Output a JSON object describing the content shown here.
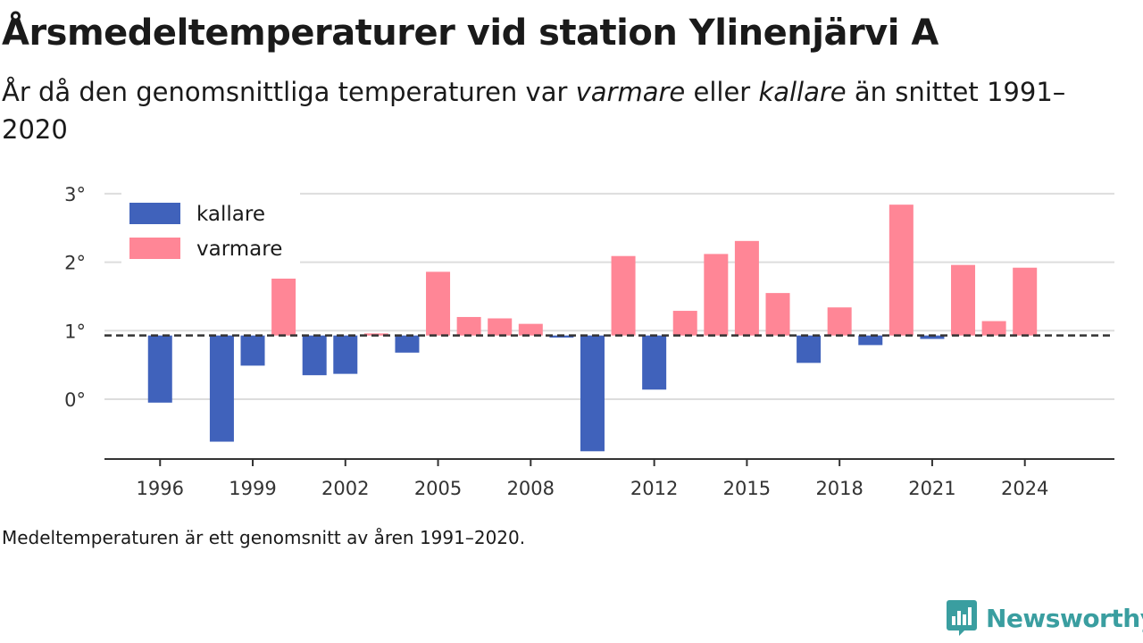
{
  "title": "Årsmedeltemperaturer vid station Ylinenjärvi A",
  "subtitle": {
    "part1": "År då den genomsnittliga temperaturen var ",
    "warmer": "varmare",
    "part2": " eller ",
    "colder": "kallare",
    "part3": " än snittet 1991–2020"
  },
  "footnote": "Medeltemperaturen är ett genomsnitt av åren 1991–2020.",
  "brand": "Newsworthy",
  "chart_data": {
    "type": "bar",
    "baseline": 0.93,
    "ylim": [
      -0.85,
      3.0
    ],
    "yticks": [
      0,
      1,
      2,
      3
    ],
    "ytick_labels": [
      "0°",
      "1°",
      "2°",
      "3°"
    ],
    "xticks": [
      1996,
      1999,
      2002,
      2005,
      2008,
      2012,
      2015,
      2018,
      2021,
      2024
    ],
    "xlim": [
      1994.2,
      2026.9
    ],
    "grid": true,
    "legend_position": "top-left",
    "colors": {
      "colder": "#4062bb",
      "warmer": "#ff8696"
    },
    "legend": [
      {
        "key": "colder",
        "label": "kallare"
      },
      {
        "key": "warmer",
        "label": "varmare"
      }
    ],
    "data": [
      {
        "x": 1996,
        "y": -0.05
      },
      {
        "x": 1998,
        "y": -0.62
      },
      {
        "x": 1999,
        "y": 0.49
      },
      {
        "x": 2000,
        "y": 1.76
      },
      {
        "x": 2001,
        "y": 0.35
      },
      {
        "x": 2002,
        "y": 0.37
      },
      {
        "x": 2003,
        "y": 0.96
      },
      {
        "x": 2004,
        "y": 0.68
      },
      {
        "x": 2005,
        "y": 1.86
      },
      {
        "x": 2006,
        "y": 1.2
      },
      {
        "x": 2007,
        "y": 1.18
      },
      {
        "x": 2008,
        "y": 1.1
      },
      {
        "x": 2009,
        "y": 0.9
      },
      {
        "x": 2010,
        "y": -0.76
      },
      {
        "x": 2011,
        "y": 2.09
      },
      {
        "x": 2012,
        "y": 0.14
      },
      {
        "x": 2013,
        "y": 1.29
      },
      {
        "x": 2014,
        "y": 2.12
      },
      {
        "x": 2015,
        "y": 2.31
      },
      {
        "x": 2016,
        "y": 1.55
      },
      {
        "x": 2017,
        "y": 0.53
      },
      {
        "x": 2018,
        "y": 1.34
      },
      {
        "x": 2019,
        "y": 0.79
      },
      {
        "x": 2020,
        "y": 2.84
      },
      {
        "x": 2021,
        "y": 0.88
      },
      {
        "x": 2022,
        "y": 1.96
      },
      {
        "x": 2023,
        "y": 1.14
      },
      {
        "x": 2024,
        "y": 1.92
      }
    ]
  }
}
